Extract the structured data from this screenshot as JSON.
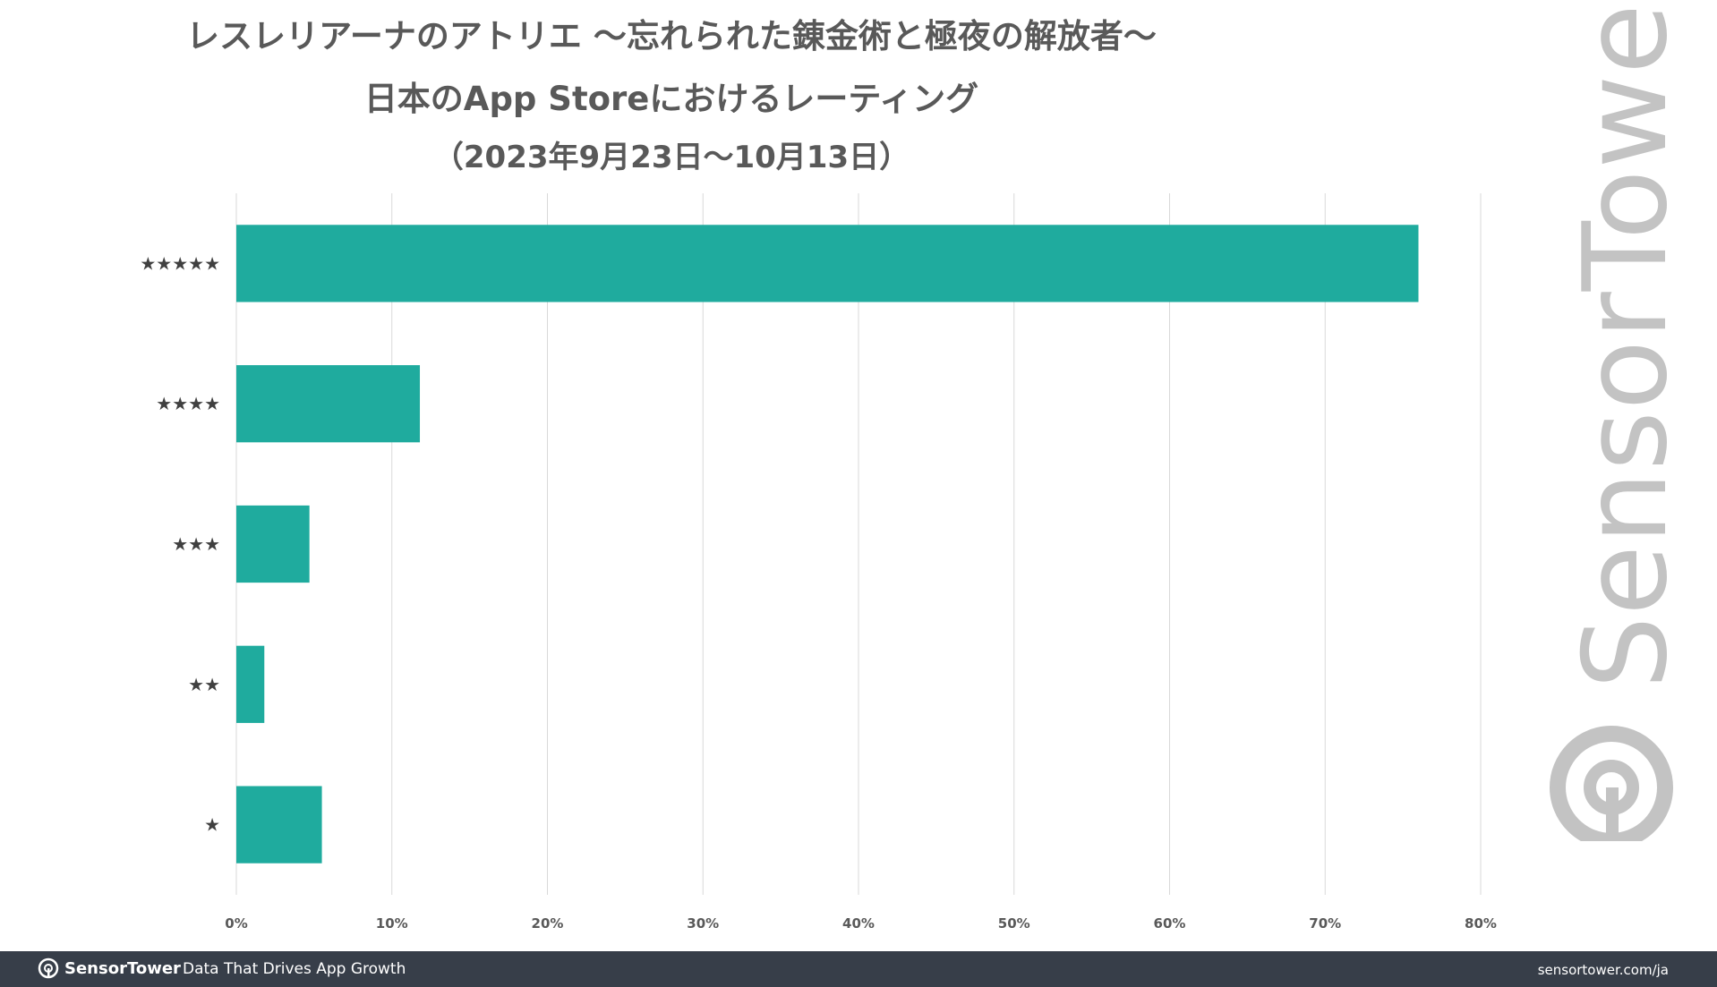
{
  "title_line1": "レスレリアーナのアトリエ ～忘れられた錬金術と極夜の解放者～",
  "title_line2": "日本のApp Storeにおけるレーティング",
  "title_line3": "（2023年9月23日～10月13日）",
  "chart_data": {
    "type": "bar",
    "orientation": "horizontal",
    "categories": [
      "★★★★★",
      "★★★★",
      "★★★",
      "★★",
      "★"
    ],
    "values": [
      76.0,
      11.8,
      4.7,
      1.8,
      5.5
    ],
    "value_unit": "%",
    "xlim": [
      0,
      80
    ],
    "x_ticks": [
      "0%",
      "10%",
      "20%",
      "30%",
      "40%",
      "50%",
      "60%",
      "70%",
      "80%"
    ],
    "grid": "vertical",
    "bar_color": "#1fab9e"
  },
  "watermark": {
    "text": "SensorTower",
    "icon": "sensor-tower-logo-icon",
    "color": "#c3c3c3"
  },
  "footer": {
    "brand": "SensorTower",
    "tagline": "Data That Drives App Growth",
    "url": "sensortower.com/ja",
    "background": "#373e49"
  }
}
